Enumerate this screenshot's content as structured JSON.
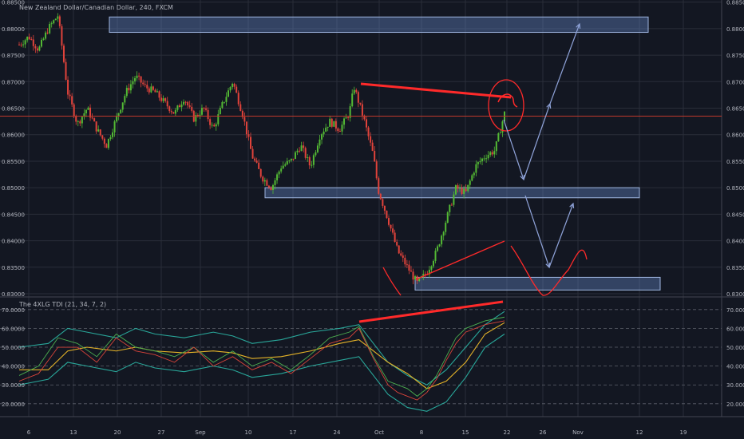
{
  "header": {
    "symbol_title": "New Zealand Dollar/Canadian Dollar, 240, FXCM",
    "indicator_title": "The 4XLG TDI (21, 34, 7, 2)"
  },
  "colors": {
    "background": "#131722",
    "grid": "#2a2e39",
    "text": "#b2b5be",
    "bull_candle": "#53b934",
    "bear_candle": "#e0433b",
    "zone_fill": "#5a79b3",
    "zone_stroke": "#9fb6e0",
    "trend_line": "#ff2a2a",
    "projection": "#8fa3d9",
    "price_line": "#c0392b",
    "tdi_band": "#29a79a",
    "tdi_signal": "#e6b428",
    "tdi_rsi": "#4caf50",
    "tdi_fast": "#d8443a"
  },
  "chart_data": [
    {
      "type": "candlestick",
      "title": "New Zealand Dollar/Canadian Dollar, 240, FXCM",
      "x_tick_labels": [
        "6",
        "13",
        "20",
        "27",
        "Sep",
        "10",
        "17",
        "24",
        "Oct",
        "8",
        "15",
        "22",
        "26",
        "Nov",
        "12",
        "19"
      ],
      "y_tick_labels": [
        "0.88500",
        "0.88000",
        "0.87500",
        "0.87000",
        "0.86500",
        "0.86000",
        "0.85500",
        "0.85000",
        "0.84500",
        "0.84000",
        "0.83500",
        "0.83000"
      ],
      "ylim": [
        0.8297,
        0.8851
      ],
      "close_path": [
        [
          0,
          0.877
        ],
        [
          2,
          0.8785
        ],
        [
          4,
          0.876
        ],
        [
          6,
          0.88
        ],
        [
          8,
          0.8825
        ],
        [
          10,
          0.868
        ],
        [
          12,
          0.862
        ],
        [
          14,
          0.865
        ],
        [
          16,
          0.861
        ],
        [
          18,
          0.858
        ],
        [
          20,
          0.863
        ],
        [
          22,
          0.868
        ],
        [
          24,
          0.871
        ],
        [
          26,
          0.869
        ],
        [
          28,
          0.868
        ],
        [
          30,
          0.866
        ],
        [
          32,
          0.864
        ],
        [
          34,
          0.867
        ],
        [
          36,
          0.863
        ],
        [
          38,
          0.865
        ],
        [
          40,
          0.861
        ],
        [
          42,
          0.866
        ],
        [
          44,
          0.87
        ],
        [
          46,
          0.864
        ],
        [
          48,
          0.856
        ],
        [
          50,
          0.852
        ],
        [
          52,
          0.85
        ],
        [
          54,
          0.854
        ],
        [
          56,
          0.855
        ],
        [
          58,
          0.858
        ],
        [
          60,
          0.854
        ],
        [
          62,
          0.86
        ],
        [
          64,
          0.8625
        ],
        [
          66,
          0.861
        ],
        [
          68,
          0.864
        ],
        [
          69,
          0.869
        ],
        [
          71,
          0.863
        ],
        [
          73,
          0.856
        ],
        [
          74,
          0.8495
        ],
        [
          76,
          0.844
        ],
        [
          78,
          0.838
        ],
        [
          80,
          0.835
        ],
        [
          82,
          0.832
        ],
        [
          84,
          0.834
        ],
        [
          86,
          0.838
        ],
        [
          88,
          0.844
        ],
        [
          90,
          0.85
        ],
        [
          92,
          0.849
        ],
        [
          94,
          0.854
        ],
        [
          96,
          0.856
        ],
        [
          98,
          0.857
        ],
        [
          100,
          0.864
        ]
      ],
      "zones": [
        {
          "from": 0.8793,
          "to": 0.8822
        },
        {
          "from": 0.8481,
          "to": 0.85
        },
        {
          "from": 0.8307,
          "to": 0.8331
        }
      ],
      "current_price_line": 0.8635
    },
    {
      "type": "line",
      "title": "The 4XLG TDI (21, 34, 7, 2)",
      "y_tick_labels": [
        "70.0000",
        "60.0000",
        "50.0000",
        "40.0000",
        "30.0000",
        "20.0000"
      ],
      "ylim": [
        14,
        75
      ],
      "series": [
        {
          "values": [
            [
              0,
              50
            ],
            [
              6,
              52
            ],
            [
              10,
              60
            ],
            [
              14,
              58
            ],
            [
              20,
              55
            ],
            [
              24,
              60
            ],
            [
              28,
              57
            ],
            [
              34,
              55
            ],
            [
              40,
              58
            ],
            [
              44,
              56
            ],
            [
              48,
              52
            ],
            [
              54,
              54
            ],
            [
              60,
              58
            ],
            [
              66,
              60
            ],
            [
              70,
              62
            ],
            [
              73,
              52
            ],
            [
              76,
              42
            ],
            [
              80,
              35
            ],
            [
              84,
              30
            ],
            [
              88,
              38
            ],
            [
              92,
              50
            ],
            [
              96,
              62
            ],
            [
              100,
              69
            ]
          ]
        },
        {
          "values": [
            [
              0,
              30
            ],
            [
              6,
              33
            ],
            [
              10,
              42
            ],
            [
              14,
              40
            ],
            [
              20,
              37
            ],
            [
              24,
              42
            ],
            [
              28,
              39
            ],
            [
              34,
              37
            ],
            [
              40,
              40
            ],
            [
              44,
              38
            ],
            [
              48,
              34
            ],
            [
              54,
              36
            ],
            [
              60,
              40
            ],
            [
              66,
              43
            ],
            [
              70,
              45
            ],
            [
              73,
              35
            ],
            [
              76,
              25
            ],
            [
              80,
              18
            ],
            [
              84,
              16
            ],
            [
              88,
              21
            ],
            [
              92,
              34
            ],
            [
              96,
              50
            ],
            [
              100,
              57
            ]
          ]
        },
        {
          "values": [
            [
              0,
              38
            ],
            [
              6,
              38
            ],
            [
              10,
              48
            ],
            [
              14,
              50
            ],
            [
              20,
              48
            ],
            [
              24,
              50
            ],
            [
              28,
              48
            ],
            [
              34,
              47
            ],
            [
              40,
              48
            ],
            [
              44,
              47
            ],
            [
              48,
              44
            ],
            [
              54,
              45
            ],
            [
              60,
              48
            ],
            [
              66,
              52
            ],
            [
              70,
              54
            ],
            [
              73,
              48
            ],
            [
              76,
              42
            ],
            [
              80,
              36
            ],
            [
              84,
              28
            ],
            [
              88,
              32
            ],
            [
              92,
              42
            ],
            [
              96,
              57
            ],
            [
              100,
              63
            ]
          ]
        },
        {
          "values": [
            [
              0,
              35
            ],
            [
              4,
              40
            ],
            [
              8,
              55
            ],
            [
              12,
              52
            ],
            [
              16,
              45
            ],
            [
              20,
              57
            ],
            [
              24,
              50
            ],
            [
              28,
              48
            ],
            [
              32,
              45
            ],
            [
              36,
              50
            ],
            [
              40,
              42
            ],
            [
              44,
              48
            ],
            [
              48,
              40
            ],
            [
              52,
              44
            ],
            [
              56,
              38
            ],
            [
              60,
              46
            ],
            [
              64,
              55
            ],
            [
              68,
              58
            ],
            [
              70,
              61
            ],
            [
              73,
              45
            ],
            [
              76,
              32
            ],
            [
              78,
              30
            ],
            [
              80,
              28
            ],
            [
              82,
              24
            ],
            [
              84,
              28
            ],
            [
              86,
              35
            ],
            [
              88,
              45
            ],
            [
              90,
              55
            ],
            [
              92,
              60
            ],
            [
              94,
              62
            ],
            [
              96,
              64
            ],
            [
              100,
              66
            ]
          ]
        },
        {
          "values": [
            [
              0,
              32
            ],
            [
              4,
              36
            ],
            [
              8,
              50
            ],
            [
              12,
              50
            ],
            [
              16,
              42
            ],
            [
              20,
              55
            ],
            [
              24,
              48
            ],
            [
              28,
              46
            ],
            [
              32,
              42
            ],
            [
              36,
              50
            ],
            [
              40,
              40
            ],
            [
              44,
              45
            ],
            [
              48,
              38
            ],
            [
              52,
              42
            ],
            [
              56,
              36
            ],
            [
              60,
              44
            ],
            [
              64,
              52
            ],
            [
              68,
              55
            ],
            [
              70,
              60
            ],
            [
              73,
              44
            ],
            [
              76,
              30
            ],
            [
              78,
              26
            ],
            [
              80,
              24
            ],
            [
              82,
              22
            ],
            [
              84,
              26
            ],
            [
              86,
              33
            ],
            [
              88,
              43
            ],
            [
              90,
              52
            ],
            [
              92,
              58
            ],
            [
              94,
              60
            ],
            [
              96,
              62
            ],
            [
              100,
              64
            ]
          ]
        }
      ]
    }
  ]
}
